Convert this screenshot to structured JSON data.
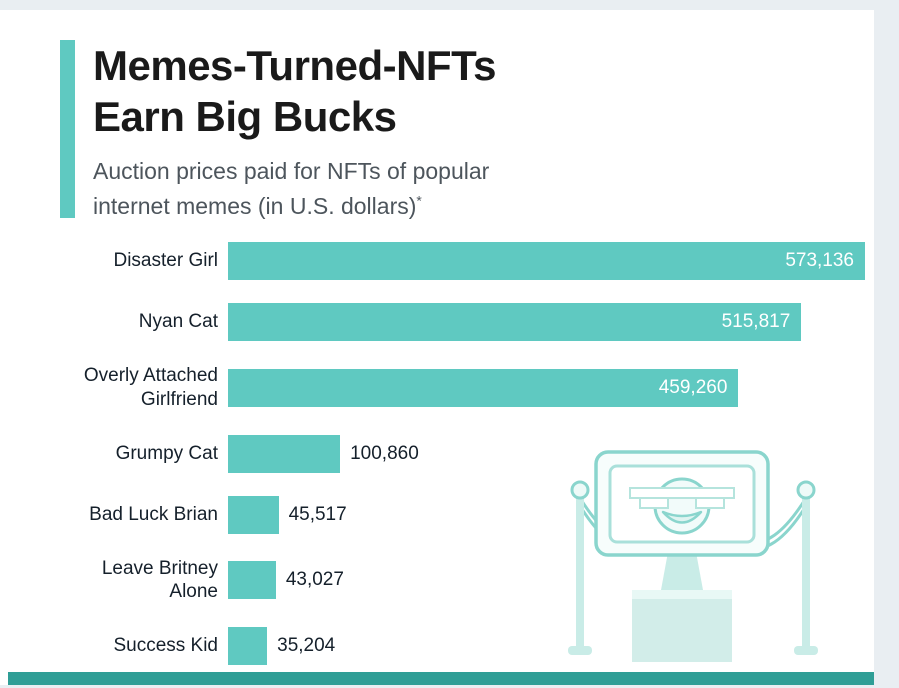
{
  "colors": {
    "background": "#e9eef2",
    "card": "#ffffff",
    "accent": "#5fc9c1",
    "bar": "#5fc9c1",
    "footer": "#2f9e96",
    "value_inside_text": "#ffffff",
    "value_outside_text": "#15202b",
    "illustration_stroke": "#8ad5cd"
  },
  "header": {
    "title_line1": "Memes-Turned-NFTs",
    "title_line2": "Earn Big Bucks",
    "subtitle_line1": "Auction prices paid for NFTs of popular",
    "subtitle_line2": "internet memes (in U.S. dollars)",
    "footnote_marker": "*"
  },
  "chart_data": {
    "type": "bar",
    "orientation": "horizontal",
    "title": "Memes-Turned-NFTs Earn Big Bucks",
    "subtitle": "Auction prices paid for NFTs of popular internet memes (in U.S. dollars)*",
    "categories": [
      "Disaster Girl",
      "Nyan Cat",
      "Overly Attached Girlfriend",
      "Grumpy Cat",
      "Bad Luck Brian",
      "Leave Britney Alone",
      "Success Kid"
    ],
    "values": [
      573136,
      515817,
      459260,
      100860,
      45517,
      43027,
      35204
    ],
    "value_labels": [
      "573,136",
      "515,817",
      "459,260",
      "100,860",
      "45,517",
      "43,027",
      "35,204"
    ],
    "xlim": [
      0,
      573136
    ],
    "bar_color": "#5fc9c1",
    "label_inside_threshold": 200000,
    "grid": false,
    "legend": false
  },
  "illustration": {
    "name": "meme-museum-exhibit"
  }
}
